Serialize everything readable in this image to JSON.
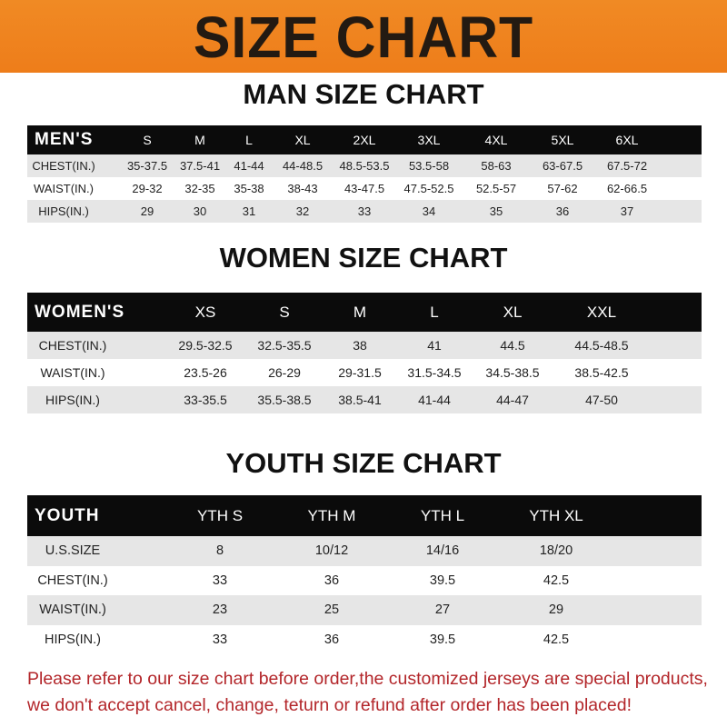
{
  "banner": {
    "title": "SIZE CHART",
    "color": "#ee7d1a"
  },
  "men": {
    "title": "MAN SIZE CHART",
    "header": [
      "MEN'S",
      "S",
      "M",
      "L",
      "XL",
      "2XL",
      "3XL",
      "4XL",
      "5XL",
      "6XL"
    ],
    "rows": [
      [
        "CHEST(IN.)",
        "35-37.5",
        "37.5-41",
        "41-44",
        "44-48.5",
        "48.5-53.5",
        "53.5-58",
        "58-63",
        "63-67.5",
        "67.5-72"
      ],
      [
        "WAIST(IN.)",
        "29-32",
        "32-35",
        "35-38",
        "38-43",
        "43-47.5",
        "47.5-52.5",
        "52.5-57",
        "57-62",
        "62-66.5"
      ],
      [
        "HIPS(IN.)",
        "29",
        "30",
        "31",
        "32",
        "33",
        "34",
        "35",
        "36",
        "37"
      ]
    ]
  },
  "women": {
    "title": "WOMEN SIZE CHART",
    "header": [
      "WOMEN'S",
      "XS",
      "S",
      "M",
      "L",
      "XL",
      "XXL"
    ],
    "rows": [
      [
        "CHEST(IN.)",
        "29.5-32.5",
        "32.5-35.5",
        "38",
        "41",
        "44.5",
        "44.5-48.5"
      ],
      [
        "WAIST(IN.)",
        "23.5-26",
        "26-29",
        "29-31.5",
        "31.5-34.5",
        "34.5-38.5",
        "38.5-42.5"
      ],
      [
        "HIPS(IN.)",
        "33-35.5",
        "35.5-38.5",
        "38.5-41",
        "41-44",
        "44-47",
        "47-50"
      ]
    ]
  },
  "youth": {
    "title": "YOUTH SIZE CHART",
    "header": [
      "YOUTH",
      "YTH S",
      "YTH M",
      "YTH L",
      "YTH XL"
    ],
    "rows": [
      [
        "U.S.SIZE",
        "8",
        "10/12",
        "14/16",
        "18/20"
      ],
      [
        "CHEST(IN.)",
        "33",
        "36",
        "39.5",
        "42.5"
      ],
      [
        "WAIST(IN.)",
        "23",
        "25",
        "27",
        "29"
      ],
      [
        "HIPS(IN.)",
        "33",
        "36",
        "39.5",
        "42.5"
      ]
    ]
  },
  "notice": {
    "line1": "Please refer to our size chart before order,the customized jerseys are special products,",
    "line2": "we don't accept cancel, change, teturn or refund after order has been placed!",
    "color": "#b3262a"
  }
}
